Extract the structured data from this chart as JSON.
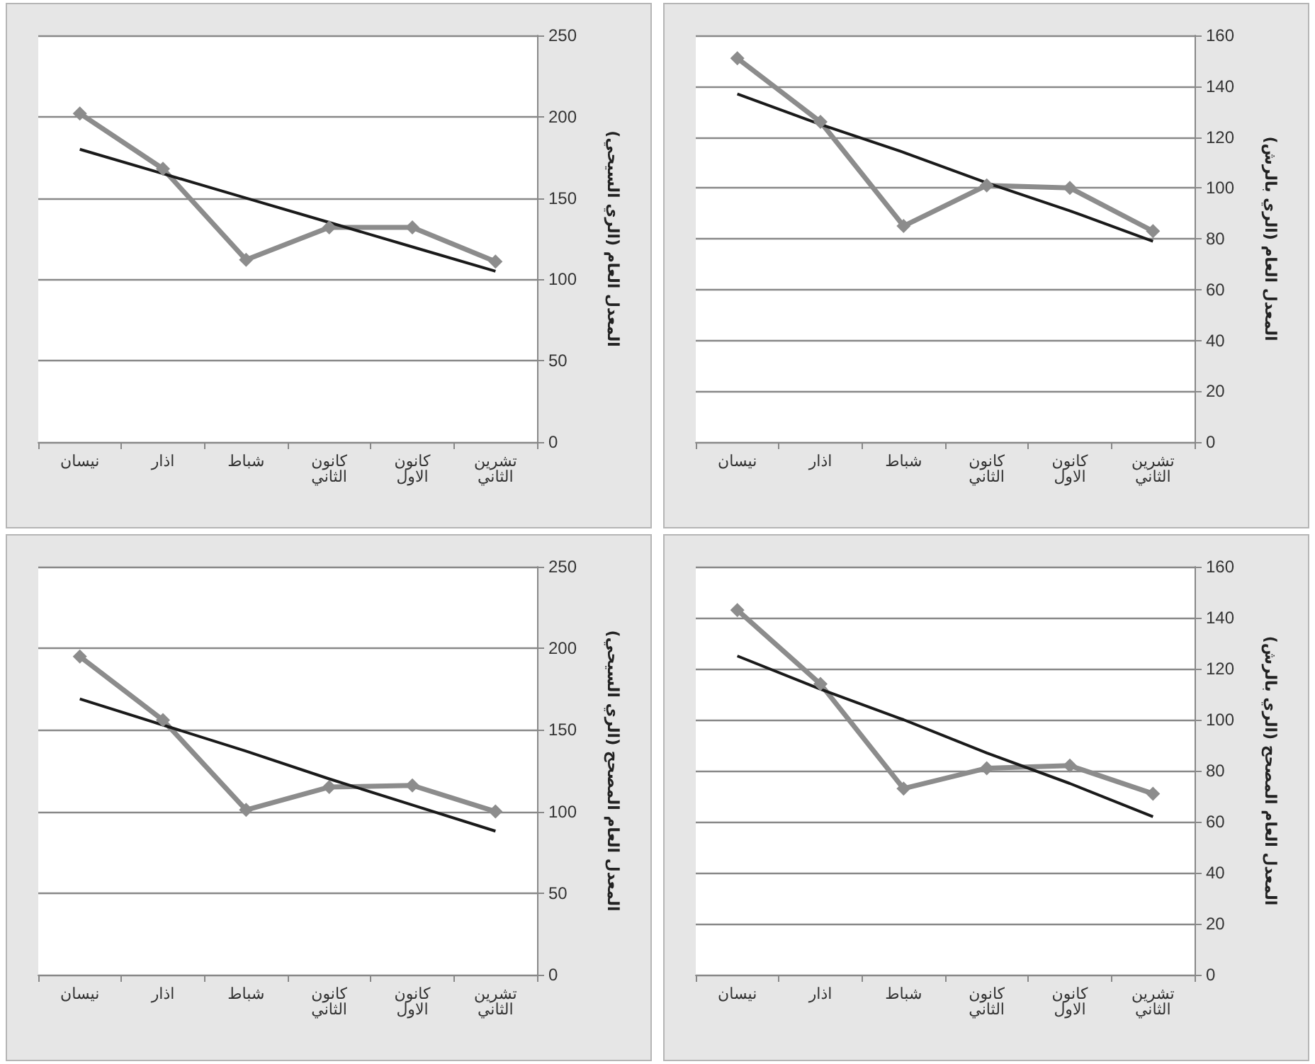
{
  "chart_data": [
    {
      "type": "line",
      "categories": [
        "نيسان",
        "اذار",
        "شباط",
        "كانون الثاني",
        "كانون الاول",
        "تشرين الثاني"
      ],
      "ylabel": "المعدل العام (الري السيحي)",
      "ylim": [
        0,
        250
      ],
      "yticks": [
        0,
        50,
        100,
        150,
        200,
        250
      ],
      "grid": "y",
      "series": [
        {
          "color": "#8c8c8c",
          "marker": "diamond",
          "values": [
            202,
            168,
            112,
            132,
            132,
            111
          ]
        },
        {
          "color": "#1a1a1a",
          "marker": "none",
          "values": [
            180,
            165,
            150,
            135,
            120,
            105
          ]
        }
      ]
    },
    {
      "type": "line",
      "categories": [
        "نيسان",
        "اذار",
        "شباط",
        "كانون الثاني",
        "كانون الاول",
        "تشرين الثاني"
      ],
      "ylabel": "المعدل العام (الري بالرش)",
      "ylim": [
        0,
        160
      ],
      "yticks": [
        0,
        20,
        40,
        60,
        80,
        100,
        120,
        140,
        160
      ],
      "grid": "y",
      "series": [
        {
          "color": "#8c8c8c",
          "marker": "diamond",
          "values": [
            151,
            126,
            85,
            101,
            100,
            83
          ]
        },
        {
          "color": "#1a1a1a",
          "marker": "none",
          "values": [
            137,
            125,
            114,
            102,
            91,
            79
          ]
        }
      ]
    },
    {
      "type": "line",
      "categories": [
        "نيسان",
        "اذار",
        "شباط",
        "كانون الثاني",
        "كانون الاول",
        "تشرين الثاني"
      ],
      "ylabel": "المعدل العام المصحح (الري السيحي)",
      "ylim": [
        0,
        250
      ],
      "yticks": [
        0,
        50,
        100,
        150,
        200,
        250
      ],
      "grid": "y",
      "series": [
        {
          "color": "#8c8c8c",
          "marker": "diamond",
          "values": [
            195,
            156,
            101,
            115,
            116,
            100
          ]
        },
        {
          "color": "#1a1a1a",
          "marker": "none",
          "values": [
            169,
            153,
            137,
            120,
            104,
            88
          ]
        }
      ]
    },
    {
      "type": "line",
      "categories": [
        "نيسان",
        "اذار",
        "شباط",
        "كانون الثاني",
        "كانون الاول",
        "تشرين الثاني"
      ],
      "ylabel": "المعدل العام المصحح (الري بالرش)",
      "ylim": [
        0,
        160
      ],
      "yticks": [
        0,
        20,
        40,
        60,
        80,
        100,
        120,
        140,
        160
      ],
      "grid": "y",
      "series": [
        {
          "color": "#8c8c8c",
          "marker": "diamond",
          "values": [
            143,
            114,
            73,
            81,
            82,
            71
          ]
        },
        {
          "color": "#1a1a1a",
          "marker": "none",
          "values": [
            125,
            112,
            100,
            87,
            75,
            62
          ]
        }
      ]
    }
  ]
}
